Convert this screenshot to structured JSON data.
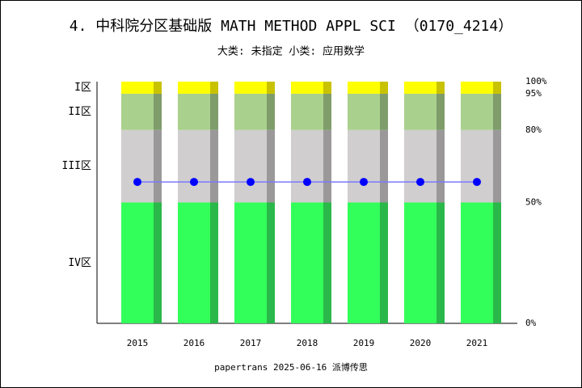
{
  "chart_data": {
    "type": "bar",
    "title": "4. 中科院分区基础版 MATH METHOD APPL SCI （0170_4214）",
    "subtitle": "大类: 未指定 小类: 应用数学",
    "caption": "papertrans 2025-06-16 派博传思",
    "categories": [
      "2015",
      "2016",
      "2017",
      "2018",
      "2019",
      "2020",
      "2021"
    ],
    "series": [
      {
        "name": "IV区",
        "color": "#33ff5a",
        "side_color": "#2ab84a",
        "values": [
          50,
          50,
          50,
          50,
          50,
          50,
          50
        ]
      },
      {
        "name": "III区",
        "color": "#d0cece",
        "side_color": "#9a9898",
        "values": [
          30,
          30,
          30,
          30,
          30,
          30,
          30
        ]
      },
      {
        "name": "II区",
        "color": "#aad08e",
        "side_color": "#7f9c6b",
        "values": [
          15,
          15,
          15,
          15,
          15,
          15,
          15
        ]
      },
      {
        "name": "I区",
        "color": "#ffff00",
        "side_color": "#c8c200",
        "values": [
          5,
          5,
          5,
          5,
          5,
          5,
          5
        ]
      }
    ],
    "line": {
      "color": "#7a7aff",
      "marker_color": "#0000ff",
      "values": [
        58.5,
        58.5,
        58.5,
        58.5,
        58.5,
        58.5,
        58.5
      ]
    },
    "ylim": [
      0,
      100
    ],
    "yticks": [
      {
        "value": 0,
        "label": "0%"
      },
      {
        "value": 50,
        "label": "50%"
      },
      {
        "value": 80,
        "label": "80%"
      },
      {
        "value": 95,
        "label": "95%"
      },
      {
        "value": 100,
        "label": "100%"
      }
    ],
    "grid": false
  }
}
